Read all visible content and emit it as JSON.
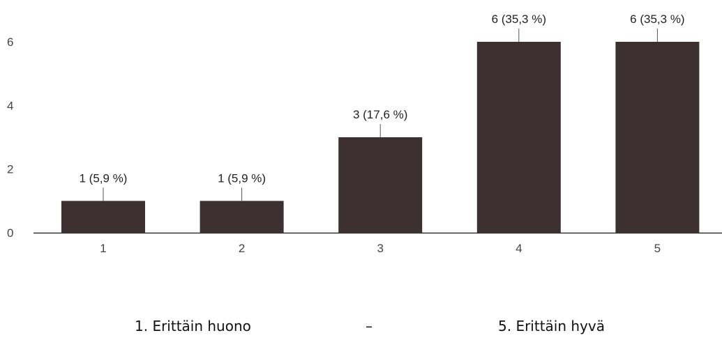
{
  "chart_data": {
    "type": "bar",
    "categories": [
      "1",
      "2",
      "3",
      "4",
      "5"
    ],
    "values": [
      1,
      1,
      3,
      6,
      6
    ],
    "data_labels": [
      "1 (5,9 %)",
      "1 (5,9 %)",
      "3 (17,6 %)",
      "6 (35,3 %)",
      "6 (35,3 %)"
    ],
    "title": "",
    "xlabel": "",
    "ylabel": "",
    "ylim": [
      0,
      6
    ],
    "yticks": [
      0,
      2,
      4,
      6
    ],
    "grid": false,
    "legend": "none",
    "bar_color": "#3d3030",
    "axis_color": "#333333"
  },
  "captions": {
    "left": "1. Erittäin huono",
    "middle": "–",
    "right": "5. Erittäin hyvä"
  }
}
